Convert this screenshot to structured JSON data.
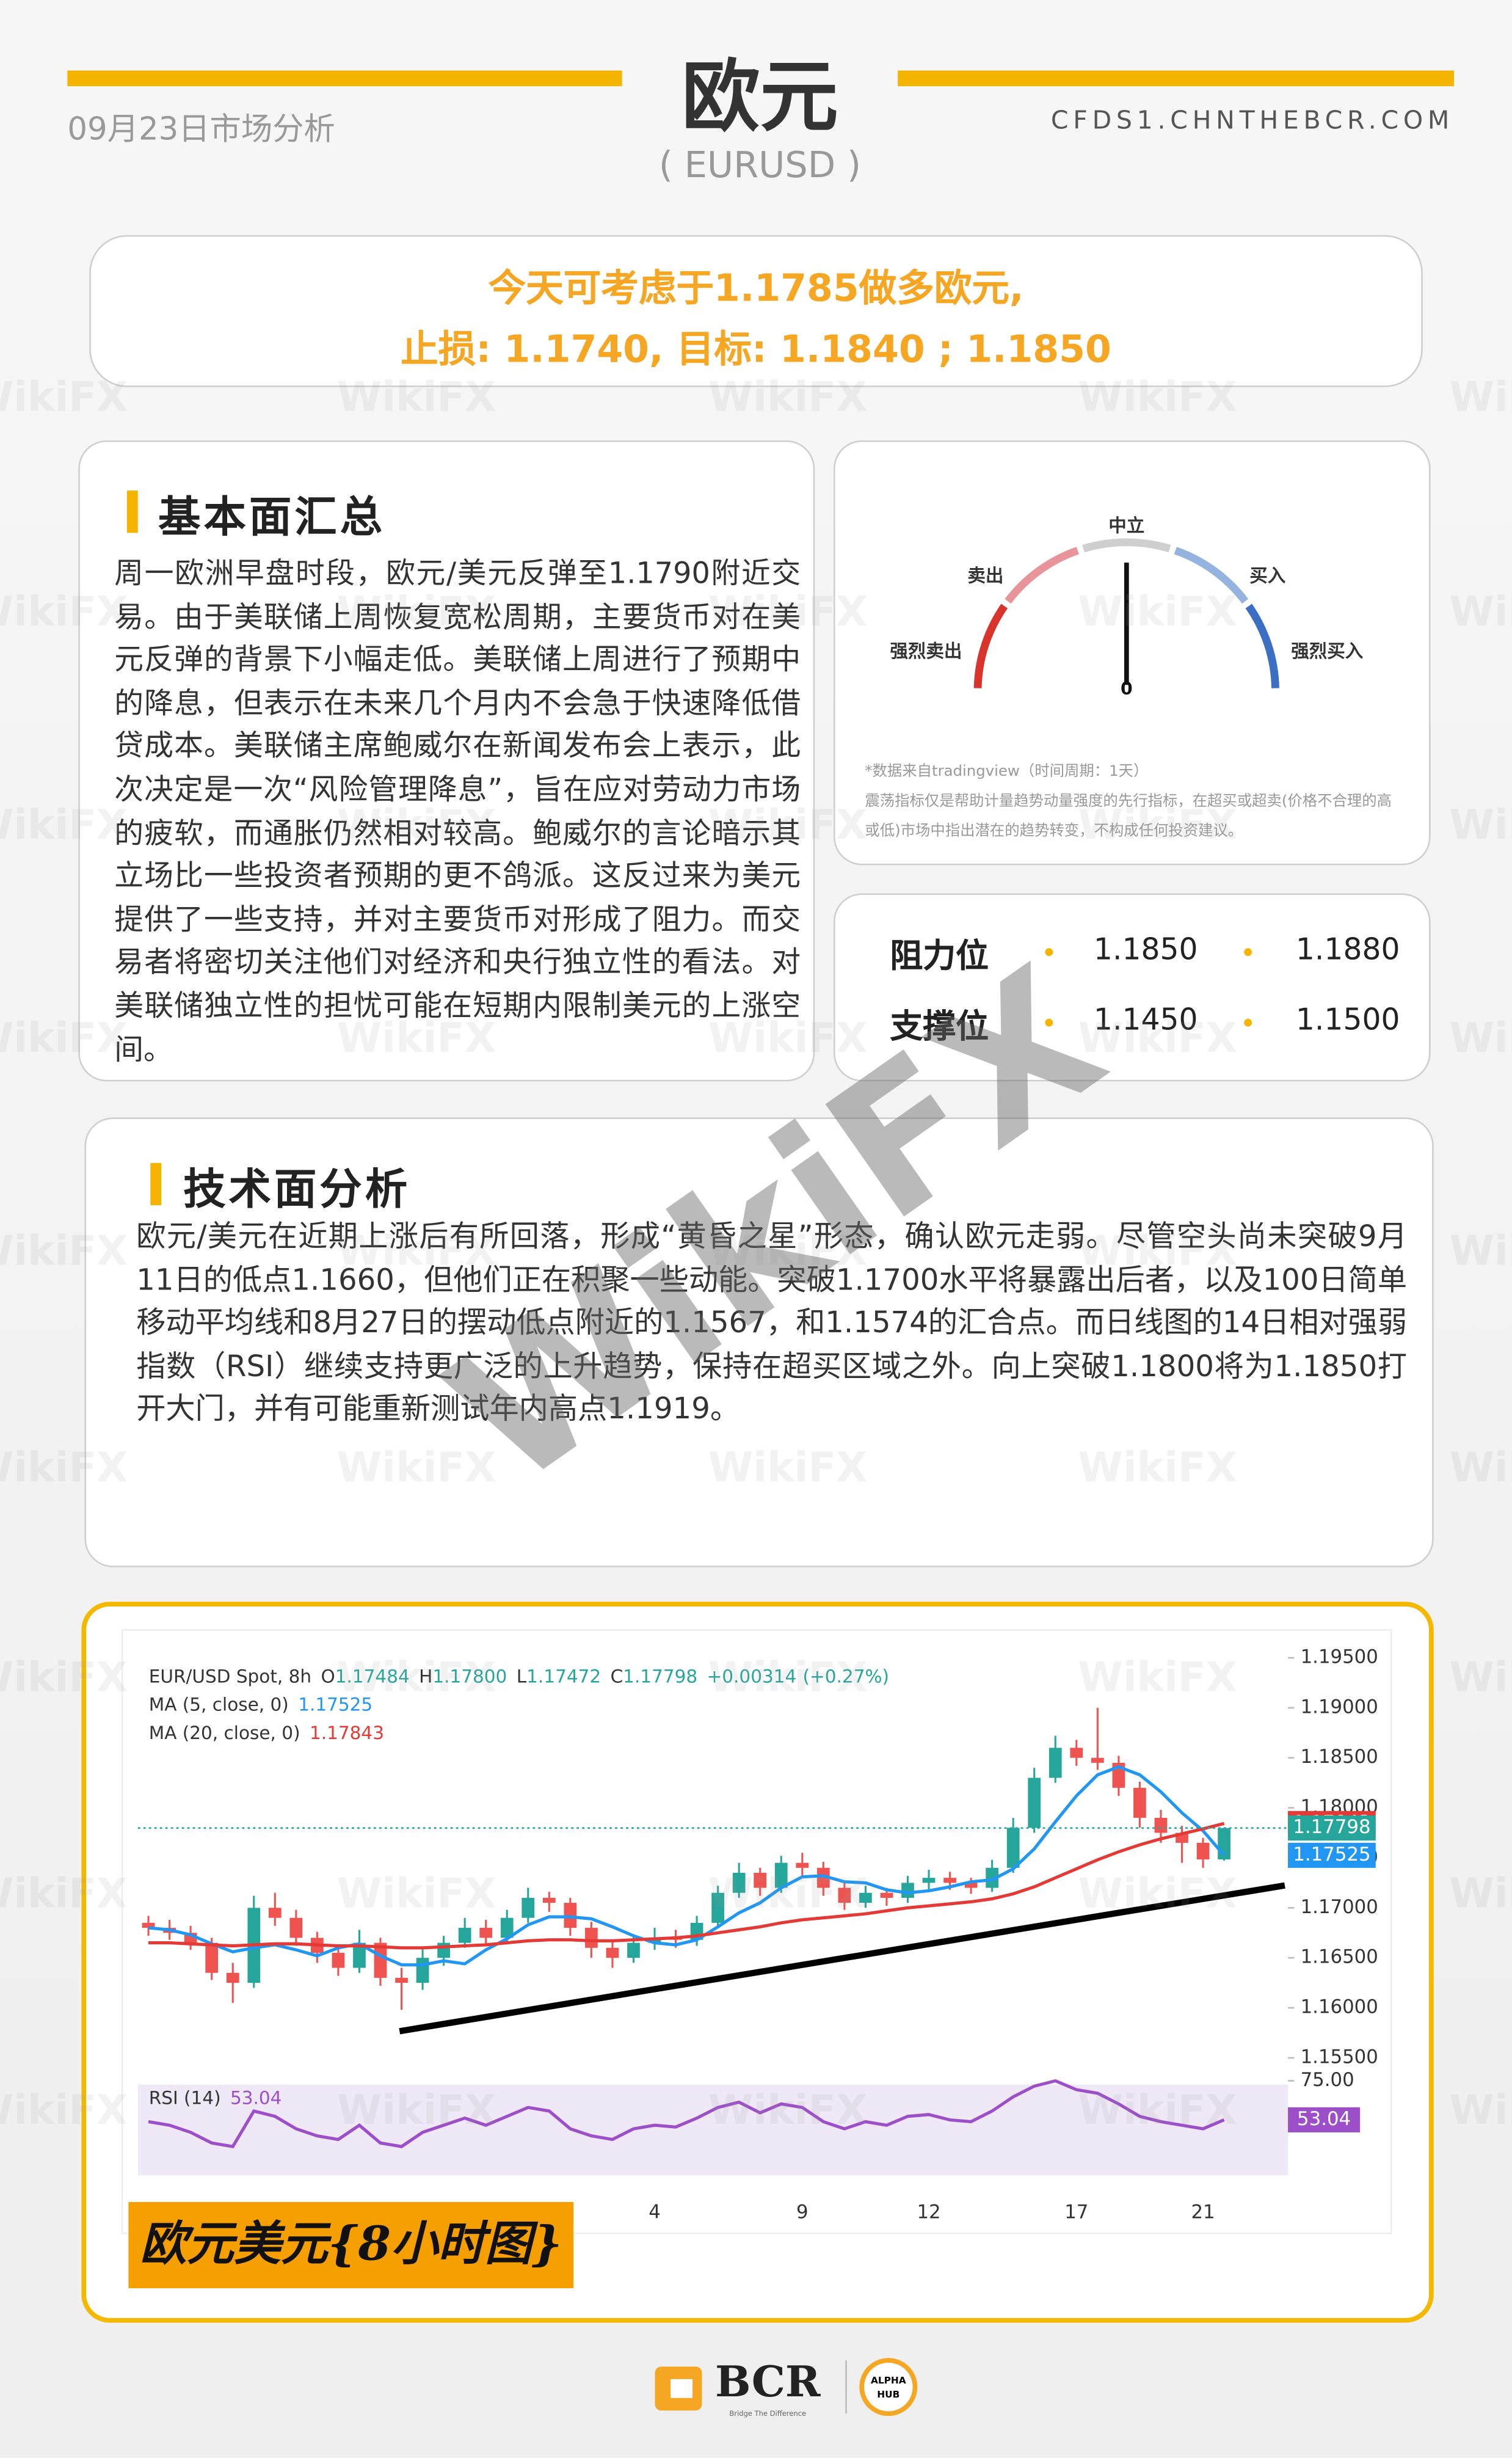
{
  "header": {
    "date": "09月23日市场分析",
    "title": "欧元",
    "subtitle": "( EURUSD )",
    "site": "CFDS1.CHNTHEBCR.COM"
  },
  "recommendation": {
    "line1": "今天可考虑于1.1785做多欧元,",
    "line2": "止损: 1.1740, 目标: 1.1840 ; 1.1850"
  },
  "fundamentals": {
    "title": "基本面汇总",
    "text": "周一欧洲早盘时段，欧元/美元反弹至1.1790附近交易。由于美联储上周恢复宽松周期，主要货币对在美元反弹的背景下小幅走低。美联储上周进行了预期中的降息，但表示在未来几个月内不会急于快速降低借贷成本。美联储主席鲍威尔在新闻发布会上表示，此次决定是一次“风险管理降息”，旨在应对劳动力市场的疲软，而通胀仍然相对较高。鲍威尔的言论暗示其立场比一些投资者预期的更不鸽派。这反过来为美元提供了一些支持，并对主要货币对形成了阻力。而交易者将密切关注他们对经济和央行独立性的看法。对美联储独立性的担忧可能在短期内限制美元的上涨空间。"
  },
  "gauge": {
    "labels": [
      "强烈卖出",
      "卖出",
      "中立",
      "买入",
      "强烈买入"
    ],
    "value": 0,
    "note": [
      "*数据来自tradingview（时间周期：1天）",
      "震荡指标仅是帮助计量趋势动量强度的先行指标，在超买或超卖(价格不合理的高或低)市场中指出潜在的趋势转变，不构成任何投资建议。"
    ]
  },
  "levels": [
    {
      "label": "阻力位",
      "values": [
        "1.1850",
        "1.1880"
      ]
    },
    {
      "label": "支撑位",
      "values": [
        "1.1450",
        "1.1500"
      ]
    }
  ],
  "technical": {
    "title": "技术面分析",
    "text": "欧元/美元在近期上涨后有所回落，形成“黄昏之星”形态，确认欧元走弱。尽管空头尚未突破9月11日的低点1.1660，但他们正在积聚一些动能。突破1.1700水平将暴露出后者，以及100日简单移动平均线和8月27日的摆动低点附近的1.1567，和1.1574的汇合点。而日线图的14日相对强弱指数（RSI）继续支持更广泛的上升趋势，保持在超买区域之外。向上突破1.1800将为1.1850打开大门，并有可能重新测试年内高点1.1919。"
  },
  "chart_data": {
    "type": "candlestick",
    "legend": {
      "symbol": "EUR/USD Spot, 8h",
      "items": [
        {
          "key": "O",
          "value": 1.17484
        },
        {
          "key": "H",
          "value": 1.178,
          "label": "1.17800"
        },
        {
          "key": "L",
          "value": 1.17472
        },
        {
          "key": "C",
          "value": 1.17798
        }
      ],
      "change": {
        "value": 0.00314,
        "label": "+0.00314"
      },
      "change_pct": {
        "value": 0.27,
        "label": "(+0.27%)"
      }
    },
    "categories": [
      null,
      null,
      null,
      null,
      null,
      null,
      null,
      null,
      null,
      null,
      null,
      null,
      null,
      null,
      null,
      null,
      null,
      null,
      null,
      null,
      null,
      null,
      null,
      null,
      "4",
      null,
      null,
      null,
      null,
      null,
      null,
      "9",
      null,
      null,
      null,
      null,
      null,
      "12",
      null,
      null,
      null,
      null,
      null,
      null,
      "17",
      null,
      null,
      null,
      null,
      null,
      "21",
      null
    ],
    "open": [
      1.1685,
      1.168,
      1.1675,
      1.1665,
      1.1635,
      1.1625,
      1.17,
      1.169,
      1.167,
      1.1655,
      1.164,
      1.1665,
      1.163,
      1.1625,
      1.165,
      1.1665,
      1.168,
      1.167,
      1.169,
      1.171,
      1.1705,
      1.168,
      1.166,
      1.165,
      1.1665,
      1.167,
      1.1668,
      1.1685,
      1.1715,
      1.1735,
      1.172,
      1.1745,
      1.174,
      1.172,
      1.1705,
      1.1715,
      1.171,
      1.1725,
      1.173,
      1.1725,
      1.172,
      1.174,
      1.178,
      1.183,
      1.186,
      1.185,
      1.1845,
      1.182,
      1.179,
      1.1775,
      1.1765,
      1.17484
    ],
    "high": [
      1.1692,
      1.1688,
      1.1682,
      1.167,
      1.1645,
      1.1712,
      1.1715,
      1.1698,
      1.1676,
      1.1662,
      1.1678,
      1.167,
      1.164,
      1.166,
      1.1672,
      1.169,
      1.1688,
      1.1698,
      1.172,
      1.1716,
      1.171,
      1.1686,
      1.1668,
      1.1672,
      1.168,
      1.1678,
      1.1692,
      1.1722,
      1.1745,
      1.174,
      1.1752,
      1.1755,
      1.1746,
      1.1726,
      1.1722,
      1.172,
      1.1732,
      1.1738,
      1.1736,
      1.173,
      1.1748,
      1.179,
      1.184,
      1.1872,
      1.1868,
      1.19,
      1.1852,
      1.1826,
      1.1798,
      1.1782,
      1.177,
      1.178
    ],
    "low": [
      1.1672,
      1.1668,
      1.1658,
      1.1628,
      1.1605,
      1.162,
      1.1682,
      1.1662,
      1.1645,
      1.1632,
      1.1635,
      1.1622,
      1.1598,
      1.1618,
      1.1642,
      1.166,
      1.1662,
      1.1665,
      1.1685,
      1.1696,
      1.1672,
      1.165,
      1.164,
      1.1645,
      1.1658,
      1.166,
      1.1662,
      1.168,
      1.171,
      1.1712,
      1.1715,
      1.1732,
      1.1712,
      1.1698,
      1.17,
      1.1702,
      1.1705,
      1.1718,
      1.1718,
      1.1714,
      1.1716,
      1.1735,
      1.1775,
      1.1825,
      1.1842,
      1.1838,
      1.1812,
      1.178,
      1.1765,
      1.1745,
      1.174,
      1.17472
    ],
    "close": [
      1.168,
      1.1675,
      1.1665,
      1.1635,
      1.1625,
      1.17,
      1.169,
      1.167,
      1.1655,
      1.164,
      1.1665,
      1.163,
      1.1625,
      1.165,
      1.1665,
      1.168,
      1.167,
      1.169,
      1.171,
      1.1705,
      1.168,
      1.166,
      1.165,
      1.1665,
      1.167,
      1.1668,
      1.1685,
      1.1715,
      1.1735,
      1.172,
      1.1745,
      1.174,
      1.172,
      1.1705,
      1.1715,
      1.171,
      1.1725,
      1.173,
      1.1725,
      1.172,
      1.174,
      1.178,
      1.183,
      1.186,
      1.185,
      1.1845,
      1.182,
      1.179,
      1.1775,
      1.1765,
      1.17484,
      1.17798
    ],
    "colors": {
      "up": "#26a69a",
      "down": "#ef5350"
    },
    "series": [
      {
        "name": "MA (5, close, 0)",
        "color": "#2196f3",
        "values": [
          1.168,
          1.1678,
          1.1673,
          1.1664,
          1.1656,
          1.166,
          1.1663,
          1.1658,
          1.1652,
          1.166,
          1.1664,
          1.1652,
          1.1643,
          1.1643,
          1.1647,
          1.1644,
          1.1658,
          1.1669,
          1.1683,
          1.1691,
          1.1691,
          1.1689,
          1.1681,
          1.1672,
          1.1665,
          1.1663,
          1.1668,
          1.1681,
          1.1695,
          1.1705,
          1.172,
          1.1731,
          1.1732,
          1.1726,
          1.1725,
          1.1718,
          1.1715,
          1.1717,
          1.1721,
          1.1726,
          1.1728,
          1.1739,
          1.1759,
          1.1786,
          1.1812,
          1.1833,
          1.1841,
          1.1833,
          1.1816,
          1.1795,
          1.1777,
          1.17525
        ]
      },
      {
        "name": "MA (20, close, 0)",
        "color": "#e53935",
        "values": [
          1.1665,
          1.1665,
          1.1664,
          1.1663,
          1.1662,
          1.1663,
          1.1664,
          1.1664,
          1.1663,
          1.1662,
          1.1662,
          1.1661,
          1.166,
          1.166,
          1.1661,
          1.1662,
          1.1663,
          1.1665,
          1.1667,
          1.1668,
          1.1668,
          1.1667,
          1.1667,
          1.1668,
          1.1669,
          1.167,
          1.1672,
          1.1675,
          1.1678,
          1.1681,
          1.1685,
          1.1688,
          1.169,
          1.1692,
          1.1694,
          1.1697,
          1.17,
          1.1702,
          1.1704,
          1.1706,
          1.1709,
          1.1714,
          1.1721,
          1.173,
          1.1739,
          1.1748,
          1.1756,
          1.1763,
          1.1769,
          1.1774,
          1.1779,
          1.17843
        ]
      }
    ],
    "ylim": [
      1.155,
      1.197
    ],
    "yticks": [
      {
        "value": 1.155,
        "label": "1.15500"
      },
      {
        "value": 1.16,
        "label": "1.16000"
      },
      {
        "value": 1.165,
        "label": "1.16500"
      },
      {
        "value": 1.17,
        "label": "1.17000"
      },
      {
        "value": 1.175,
        "label": "1.17500"
      },
      {
        "value": 1.18,
        "label": "1.18000"
      },
      {
        "value": 1.185,
        "label": "1.18500"
      },
      {
        "value": 1.19,
        "label": "1.19000"
      },
      {
        "value": 1.195,
        "label": "1.19500"
      }
    ],
    "rsi": {
      "name": "RSI (14)",
      "color": "#9c4fc9",
      "ylim": [
        20,
        80
      ],
      "yticks": [
        {
          "value": 75,
          "label": "75.00"
        }
      ],
      "values": [
        52,
        50,
        46,
        40,
        38,
        58,
        55,
        48,
        44,
        42,
        50,
        40,
        38,
        46,
        50,
        54,
        50,
        55,
        60,
        58,
        48,
        44,
        42,
        48,
        50,
        49,
        54,
        60,
        63,
        57,
        62,
        60,
        52,
        48,
        52,
        50,
        55,
        56,
        53,
        52,
        58,
        66,
        72,
        75,
        70,
        68,
        62,
        55,
        52,
        50,
        48,
        53.04
      ]
    },
    "caption": "欧元美元{8小时图}"
  },
  "watermark": "WikiFX",
  "footer": {
    "brand": "BCR",
    "tagline": "Bridge The Difference",
    "badge": [
      "ALPHA",
      "HUB"
    ]
  }
}
